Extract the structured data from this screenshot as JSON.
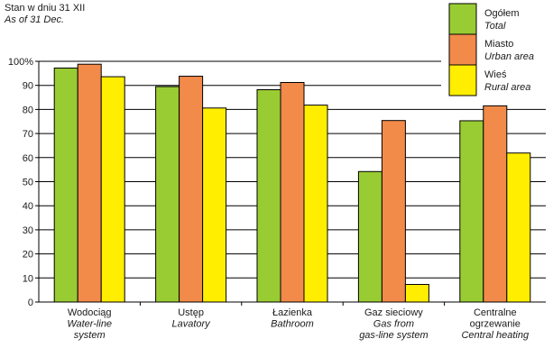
{
  "chart_data": {
    "type": "bar",
    "note_line1": "Stan w dniu 31 XII",
    "note_line2": "As of 31 Dec.",
    "y_top_label": "100%",
    "ylim": [
      0,
      100
    ],
    "yticks": [
      0,
      10,
      20,
      30,
      40,
      50,
      60,
      70,
      80,
      90
    ],
    "categories": [
      {
        "pl": [
          "Wodociąg"
        ],
        "en": [
          "Water-line",
          "system"
        ]
      },
      {
        "pl": [
          "Ustęp"
        ],
        "en": [
          "Lavatory"
        ]
      },
      {
        "pl": [
          "Łazienka"
        ],
        "en": [
          "Bathroom"
        ]
      },
      {
        "pl": [
          "Gaz sieciowy"
        ],
        "en": [
          "Gas from",
          "gas-line system"
        ]
      },
      {
        "pl": [
          "Centralne",
          "ogrzewanie"
        ],
        "en": [
          "Central heating"
        ]
      }
    ],
    "series": [
      {
        "name": "Ogółem",
        "name_en": "Total",
        "color": "#99cc33",
        "values": [
          97.2,
          89.5,
          88.2,
          54.2,
          75.3
        ]
      },
      {
        "name": "Miasto",
        "name_en": "Urban area",
        "color": "#f28a4a",
        "values": [
          98.8,
          93.8,
          91.2,
          75.4,
          81.5
        ]
      },
      {
        "name": "Wieś",
        "name_en": "Rural area",
        "color": "#ffee00",
        "values": [
          93.6,
          80.6,
          81.8,
          7.3,
          61.9
        ]
      }
    ],
    "legend_position": "top-right",
    "grid": true
  }
}
